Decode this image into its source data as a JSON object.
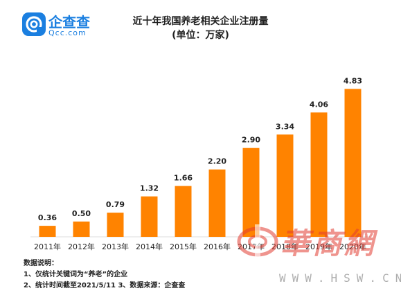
{
  "brand": {
    "name": "企查查",
    "domain": "Qcc.com",
    "color": "#1b7fe0"
  },
  "chart_data": {
    "type": "bar",
    "title": "近十年我国养老相关企业注册量",
    "subtitle": "(单位：万家)",
    "categories": [
      "2011年",
      "2012年",
      "2013年",
      "2014年",
      "2015年",
      "2016年",
      "2017年",
      "2018年",
      "2019年",
      "2020年"
    ],
    "values": [
      0.36,
      0.5,
      0.79,
      1.32,
      1.66,
      2.2,
      2.9,
      3.34,
      4.06,
      4.83
    ],
    "value_labels": [
      "0.36",
      "0.50",
      "0.79",
      "1.32",
      "1.66",
      "2.20",
      "2.90",
      "3.34",
      "4.06",
      "4.83"
    ],
    "ylim": [
      0,
      5.2
    ],
    "grid": false,
    "bar_color": "#ff8300"
  },
  "notes": {
    "heading": "数据说明：",
    "line1": "1、仅统计关键词为“养老”的企业",
    "line2": "2、统计时间截至2021/5/11   3、数据来源：企查查"
  },
  "watermark": {
    "text": "華商網",
    "domain": "WWW.HSW.CN",
    "color": "#e23c32"
  }
}
